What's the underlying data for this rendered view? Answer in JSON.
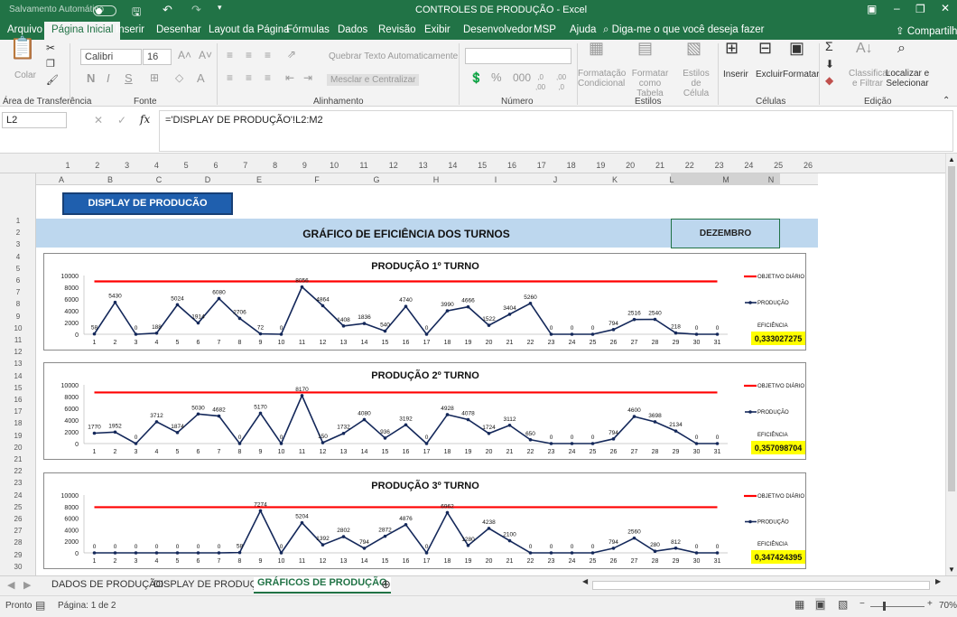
{
  "window": {
    "autosave": "Salvamento Automático",
    "title": "CONTROLES DE PRODUÇÃO  -  Excel",
    "share": "Compartilhar",
    "search": "Diga-me o que você deseja fazer"
  },
  "ribbon_tabs": [
    "Arquivo",
    "Página Inicial",
    "Inserir",
    "Desenhar",
    "Layout da Página",
    "Fórmulas",
    "Dados",
    "Revisão",
    "Exibir",
    "Desenvolvedor",
    "MSP",
    "Ajuda"
  ],
  "ribbon": {
    "paste": "Colar",
    "font_name": "Calibri",
    "font_size": "16",
    "wrap": "Quebrar Texto Automaticamente",
    "merge": "Mesclar e Centralizar",
    "cond_format": "Formatação Condicional",
    "format_table": "Formatar como Tabela",
    "cell_styles": "Estilos de Célula",
    "insert": "Inserir",
    "delete": "Excluir",
    "format": "Formatar",
    "sort": "Classificar e Filtrar",
    "find": "Localizar e Selecionar",
    "groups": {
      "clipboard": "Área de Transferência",
      "font": "Fonte",
      "alignment": "Alinhamento",
      "number": "Número",
      "styles": "Estilos",
      "cells": "Células",
      "editing": "Edição"
    }
  },
  "formula": {
    "namebox": "L2",
    "fx": "fx",
    "content": "='DISPLAY DE PRODUÇÃO'!L2:M2"
  },
  "columns": [
    "A",
    "B",
    "C",
    "D",
    "E",
    "F",
    "G",
    "H",
    "I",
    "J",
    "K",
    "L",
    "M",
    "N"
  ],
  "ruler": [
    "1",
    "2",
    "3",
    "4",
    "5",
    "6",
    "7",
    "8",
    "9",
    "10",
    "11",
    "12",
    "13",
    "14",
    "15",
    "16",
    "17",
    "18",
    "19",
    "20",
    "21",
    "22",
    "23",
    "24",
    "25",
    "26"
  ],
  "rows": [
    "1",
    "2",
    "3",
    "4",
    "5",
    "6",
    "7",
    "8",
    "9",
    "10",
    "11",
    "12",
    "13",
    "14",
    "15",
    "16",
    "17",
    "18",
    "19",
    "20",
    "21",
    "22",
    "23",
    "24",
    "25",
    "26",
    "27",
    "28",
    "29",
    "30"
  ],
  "sheet": {
    "button": "DISPLAY DE PRODUCÃO",
    "header": "GRÁFICO DE EFICIÊNCIA DOS TURNOS",
    "month": "DEZEMBRO"
  },
  "sheet_tabs": [
    "DADOS DE PRODUÇÃO",
    "DISPLAY DE PRODUÇÃO",
    "GRÁFICOS DE PRODUÇÃO"
  ],
  "status": {
    "ready": "Pronto",
    "page": "Página: 1 de 2",
    "zoom": "70%"
  },
  "colors": {
    "excel_green": "#217346",
    "target_red": "#ff0000",
    "production_navy": "#14285a",
    "efficiency_bg": "#ffff00",
    "header_band": "#bdd7ee"
  },
  "chart_data": [
    {
      "type": "line",
      "title": "PRODUÇÃO 1º TURNO",
      "x": [
        1,
        2,
        3,
        4,
        5,
        6,
        7,
        8,
        9,
        10,
        11,
        12,
        13,
        14,
        15,
        16,
        17,
        18,
        19,
        20,
        21,
        22,
        23,
        24,
        25,
        26,
        27,
        28,
        29,
        30,
        31
      ],
      "series": [
        {
          "name": "OBJETIVO DIÁRIO",
          "values": [
            9000,
            9000,
            9000,
            9000,
            9000,
            9000,
            9000,
            9000,
            9000,
            9000,
            9000,
            9000,
            9000,
            9000,
            9000,
            9000,
            9000,
            9000,
            9000,
            9000,
            9000,
            9000,
            9000,
            9000,
            9000,
            9000,
            9000,
            9000,
            9000,
            9000,
            9000
          ]
        },
        {
          "name": "PRODUÇÃO",
          "values": [
            58,
            5430,
            0,
            188,
            5024,
            1914,
            6080,
            2706,
            72,
            0,
            8056,
            4864,
            1408,
            1836,
            540,
            4740,
            0,
            3990,
            4666,
            1522,
            3404,
            5260,
            0,
            0,
            0,
            794,
            2516,
            2540,
            218,
            0,
            0
          ]
        }
      ],
      "ylim": [
        0,
        10000
      ],
      "yticks": [
        0,
        2000,
        4000,
        6000,
        8000,
        10000
      ],
      "efficiency_label": "EFICIÊNCIA",
      "efficiency": "0,333027275"
    },
    {
      "type": "line",
      "title": "PRODUÇÃO 2º TURNO",
      "x": [
        1,
        2,
        3,
        4,
        5,
        6,
        7,
        8,
        9,
        10,
        11,
        12,
        13,
        14,
        15,
        16,
        17,
        18,
        19,
        20,
        21,
        22,
        23,
        24,
        25,
        26,
        27,
        28,
        29,
        30,
        31
      ],
      "series": [
        {
          "name": "OBJETIVO DIÁRIO",
          "values": [
            8700,
            8700,
            8700,
            8700,
            8700,
            8700,
            8700,
            8700,
            8700,
            8700,
            8700,
            8700,
            8700,
            8700,
            8700,
            8700,
            8700,
            8700,
            8700,
            8700,
            8700,
            8700,
            8700,
            8700,
            8700,
            8700,
            8700,
            8700,
            8700,
            8700,
            8700
          ]
        },
        {
          "name": "PRODUÇÃO",
          "values": [
            1770,
            1952,
            0,
            3712,
            1874,
            5030,
            4682,
            0,
            5170,
            0,
            8170,
            150,
            1732,
            4080,
            936,
            3192,
            0,
            4928,
            4078,
            1724,
            3112,
            650,
            0,
            0,
            0,
            794,
            4600,
            3698,
            2134,
            0,
            0
          ]
        }
      ],
      "ylim": [
        0,
        10000
      ],
      "yticks": [
        0,
        2000,
        4000,
        6000,
        8000,
        10000
      ],
      "efficiency_label": "EFICIÊNCIA",
      "efficiency": "0,357098704"
    },
    {
      "type": "line",
      "title": "PRODUÇÃO 3º TURNO",
      "x": [
        1,
        2,
        3,
        4,
        5,
        6,
        7,
        8,
        9,
        10,
        11,
        12,
        13,
        14,
        15,
        16,
        17,
        18,
        19,
        20,
        21,
        22,
        23,
        24,
        25,
        26,
        27,
        28,
        29,
        30,
        31
      ],
      "series": [
        {
          "name": "OBJETIVO DIÁRIO",
          "values": [
            7900,
            7900,
            7900,
            7900,
            7900,
            7900,
            7900,
            7900,
            7900,
            7900,
            7900,
            7900,
            7900,
            7900,
            7900,
            7900,
            7900,
            7900,
            7900,
            7900,
            7900,
            7900,
            7900,
            7900,
            7900,
            7900,
            7900,
            7900,
            7900,
            7900,
            7900
          ]
        },
        {
          "name": "PRODUÇÃO",
          "values": [
            0,
            0,
            0,
            0,
            0,
            0,
            0,
            58,
            7274,
            0,
            5204,
            1392,
            2802,
            794,
            2872,
            4876,
            0,
            6962,
            1280,
            4238,
            2100,
            0,
            0,
            0,
            0,
            794,
            2560,
            280,
            812,
            0,
            0
          ]
        }
      ],
      "ylim": [
        0,
        10000
      ],
      "yticks": [
        0,
        2000,
        4000,
        6000,
        8000,
        10000
      ],
      "efficiency_label": "EFICIÊNCIA",
      "efficiency": "0,347424395"
    }
  ]
}
